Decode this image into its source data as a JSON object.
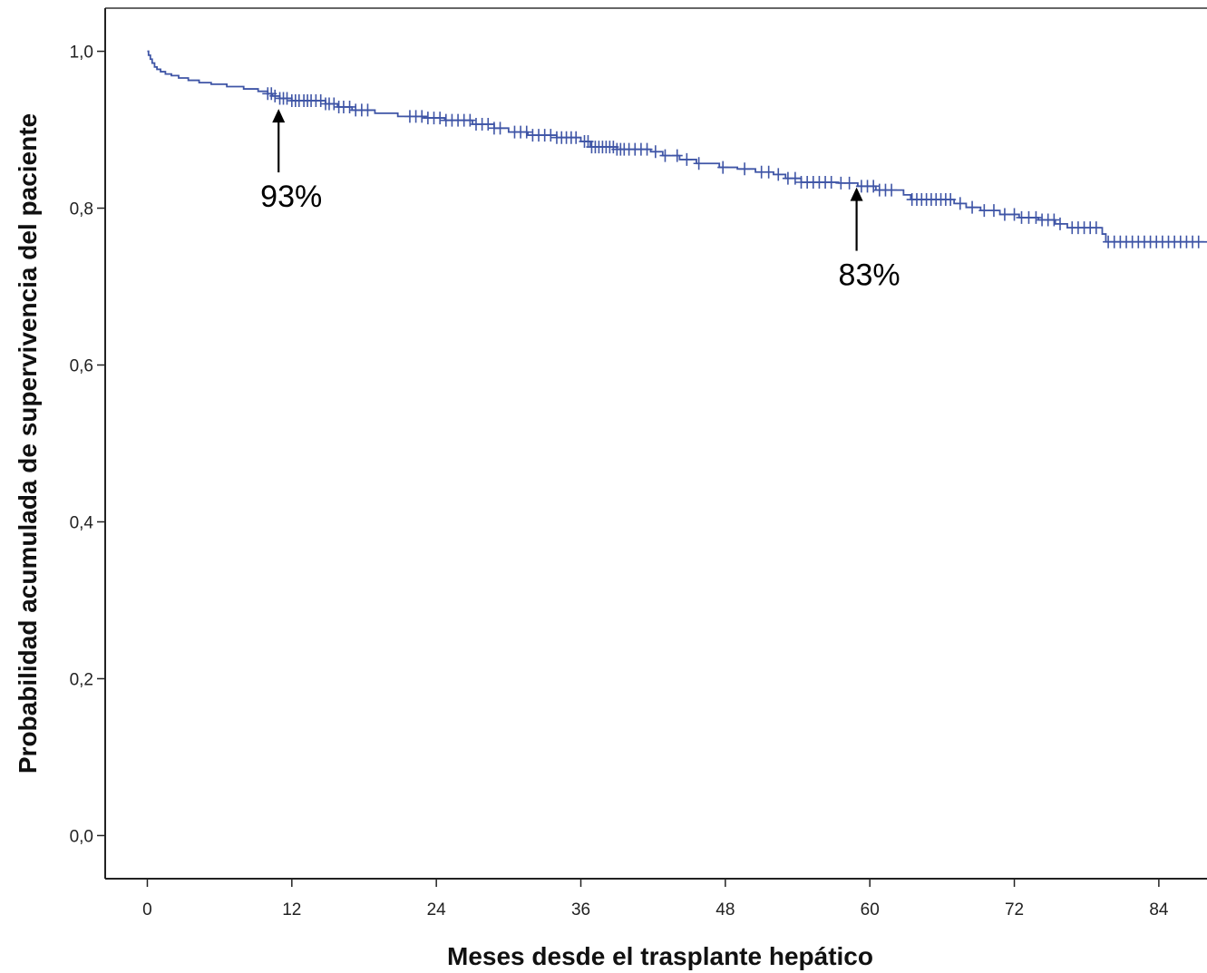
{
  "chart_data": {
    "type": "line",
    "subtype": "kaplan-meier",
    "title": "",
    "xlabel": "Meses desde el trasplante hepático",
    "ylabel": "Probabilidad acumulada de supervivencia del paciente",
    "xlim": [
      -3.5,
      88
    ],
    "ylim": [
      -0.055,
      1.055
    ],
    "x_ticks": [
      0,
      12,
      24,
      36,
      48,
      60,
      72,
      84
    ],
    "x_tick_labels": [
      "0",
      "12",
      "24",
      "36",
      "48",
      "60",
      "72",
      "84"
    ],
    "y_ticks": [
      0.0,
      0.2,
      0.4,
      0.6,
      0.8,
      1.0
    ],
    "y_tick_labels": [
      "0,0",
      "0,2",
      "0,4",
      "0,6",
      "0,8",
      "1,0"
    ],
    "grid": false,
    "legend": "none",
    "series": [
      {
        "color": "#3f55a6",
        "steps": [
          [
            0,
            1.0
          ],
          [
            0.1,
            0.995
          ],
          [
            0.25,
            0.99
          ],
          [
            0.4,
            0.985
          ],
          [
            0.6,
            0.98
          ],
          [
            0.8,
            0.977
          ],
          [
            1.1,
            0.974
          ],
          [
            1.5,
            0.971
          ],
          [
            2.0,
            0.969
          ],
          [
            2.6,
            0.966
          ],
          [
            3.4,
            0.963
          ],
          [
            4.3,
            0.96
          ],
          [
            5.3,
            0.958
          ],
          [
            6.6,
            0.955
          ],
          [
            8.0,
            0.952
          ],
          [
            9.2,
            0.949
          ],
          [
            10.0,
            0.946
          ],
          [
            10.4,
            0.943
          ],
          [
            11.0,
            0.94
          ],
          [
            12.0,
            0.937
          ],
          [
            14.8,
            0.933
          ],
          [
            15.8,
            0.929
          ],
          [
            17.0,
            0.925
          ],
          [
            18.9,
            0.921
          ],
          [
            20.8,
            0.917
          ],
          [
            23.0,
            0.915
          ],
          [
            24.7,
            0.912
          ],
          [
            27.0,
            0.907
          ],
          [
            28.8,
            0.902
          ],
          [
            30.0,
            0.897
          ],
          [
            31.6,
            0.893
          ],
          [
            34.0,
            0.89
          ],
          [
            36.0,
            0.885
          ],
          [
            36.8,
            0.878
          ],
          [
            39.0,
            0.875
          ],
          [
            41.8,
            0.872
          ],
          [
            42.8,
            0.867
          ],
          [
            44.2,
            0.862
          ],
          [
            45.6,
            0.857
          ],
          [
            47.5,
            0.852
          ],
          [
            49.0,
            0.85
          ],
          [
            50.5,
            0.846
          ],
          [
            52.0,
            0.843
          ],
          [
            53.0,
            0.838
          ],
          [
            54.3,
            0.833
          ],
          [
            57.4,
            0.832
          ],
          [
            59.0,
            0.828
          ],
          [
            60.5,
            0.823
          ],
          [
            62.8,
            0.817
          ],
          [
            63.4,
            0.811
          ],
          [
            67.0,
            0.806
          ],
          [
            68.0,
            0.801
          ],
          [
            69.2,
            0.797
          ],
          [
            70.8,
            0.792
          ],
          [
            72.4,
            0.788
          ],
          [
            74.0,
            0.785
          ],
          [
            75.4,
            0.78
          ],
          [
            76.4,
            0.775
          ],
          [
            79.3,
            0.767
          ],
          [
            79.6,
            0.757
          ],
          [
            88,
            0.757
          ]
        ],
        "censored_x": [
          10.0,
          10.3,
          10.6,
          11.0,
          11.3,
          11.6,
          12.0,
          12.3,
          12.6,
          13.0,
          13.3,
          13.6,
          14.0,
          14.4,
          14.8,
          15.1,
          15.5,
          15.9,
          16.3,
          16.8,
          17.3,
          17.8,
          18.3,
          21.8,
          22.3,
          22.8,
          23.3,
          23.8,
          24.3,
          24.8,
          25.3,
          25.8,
          26.3,
          26.8,
          27.3,
          27.8,
          28.3,
          28.8,
          29.3,
          30.5,
          31.0,
          31.5,
          32.0,
          32.5,
          33.0,
          33.5,
          34.0,
          34.4,
          34.8,
          35.2,
          35.6,
          36.3,
          36.6,
          36.9,
          37.2,
          37.5,
          37.8,
          38.1,
          38.4,
          38.7,
          39.0,
          39.3,
          39.6,
          40.0,
          40.5,
          41.0,
          41.5,
          42.2,
          43.0,
          44.0,
          44.8,
          45.8,
          47.8,
          49.6,
          51.0,
          51.6,
          52.4,
          53.2,
          53.8,
          54.3,
          54.8,
          55.3,
          55.8,
          56.3,
          56.8,
          57.6,
          58.3,
          59.3,
          59.8,
          60.3,
          60.8,
          61.3,
          61.8,
          63.5,
          63.9,
          64.3,
          64.7,
          65.1,
          65.5,
          65.9,
          66.3,
          66.7,
          67.5,
          68.5,
          69.5,
          70.3,
          71.2,
          72.0,
          72.6,
          73.2,
          73.8,
          74.3,
          74.8,
          75.3,
          75.8,
          76.8,
          77.3,
          77.8,
          78.3,
          78.8,
          79.8,
          80.3,
          80.8,
          81.3,
          81.8,
          82.3,
          82.8,
          83.3,
          83.8,
          84.3,
          84.8,
          85.3,
          85.8,
          86.3,
          86.8,
          87.3
        ]
      }
    ],
    "annotations": [
      {
        "text": "93%",
        "x": 10.9,
        "y": 0.93
      },
      {
        "text": "83%",
        "x": 58.9,
        "y": 0.83
      }
    ]
  }
}
